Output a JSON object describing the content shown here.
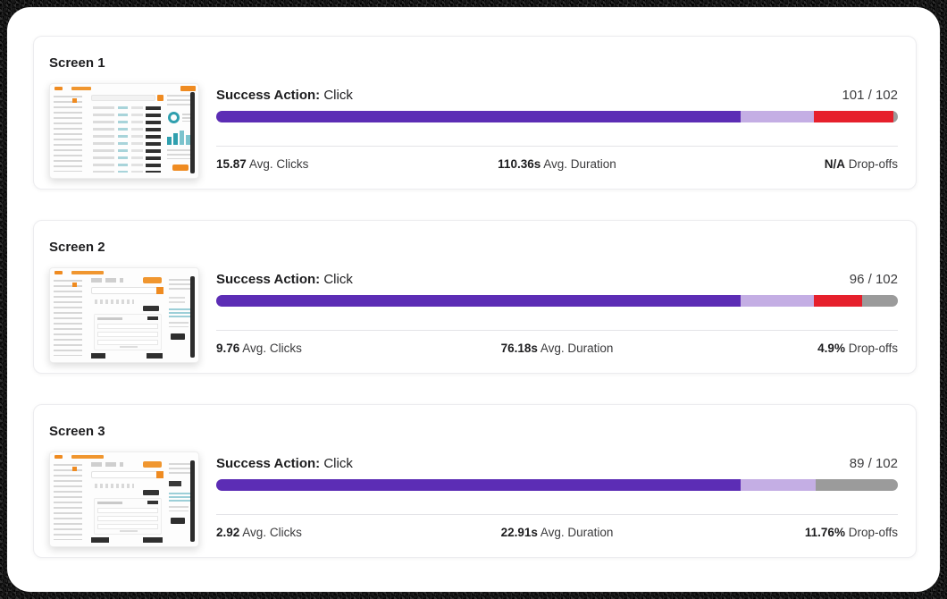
{
  "colors": {
    "purple": "#5C2DB5",
    "purple_light": "#C4AEE4",
    "red": "#E6202C",
    "gray": "#9B9B9B",
    "accent_orange": "#EF8B21",
    "teal": "#2F9FAE"
  },
  "cards": [
    {
      "title": "Screen 1",
      "success_action_label": "Success Action:",
      "success_action_value": "Click",
      "count": "101 / 102",
      "segments": [
        {
          "color": "purple",
          "pct": 76.9
        },
        {
          "color": "purple_light",
          "pct": 10.8
        },
        {
          "color": "red",
          "pct": 11.6
        },
        {
          "color": "gray",
          "pct": 0.7
        }
      ],
      "stats": [
        {
          "value": "15.87",
          "label": "Avg. Clicks"
        },
        {
          "value": "110.36s",
          "label": "Avg. Duration"
        },
        {
          "value": "N/A",
          "label": "Drop-offs"
        }
      ]
    },
    {
      "title": "Screen 2",
      "success_action_label": "Success Action:",
      "success_action_value": "Click",
      "count": "96 / 102",
      "segments": [
        {
          "color": "purple",
          "pct": 76.9
        },
        {
          "color": "purple_light",
          "pct": 10.8
        },
        {
          "color": "red",
          "pct": 7.1
        },
        {
          "color": "gray",
          "pct": 5.2
        }
      ],
      "stats": [
        {
          "value": "9.76",
          "label": "Avg. Clicks"
        },
        {
          "value": "76.18s",
          "label": "Avg. Duration"
        },
        {
          "value": "4.9%",
          "label": "Drop-offs"
        }
      ]
    },
    {
      "title": "Screen 3",
      "success_action_label": "Success Action:",
      "success_action_value": "Click",
      "count": "89 / 102",
      "segments": [
        {
          "color": "purple",
          "pct": 76.9
        },
        {
          "color": "purple_light",
          "pct": 11.1
        },
        {
          "color": "gray",
          "pct": 12.0
        }
      ],
      "stats": [
        {
          "value": "2.92",
          "label": "Avg. Clicks"
        },
        {
          "value": "22.91s",
          "label": "Avg. Duration"
        },
        {
          "value": "11.76%",
          "label": "Drop-offs"
        }
      ]
    }
  ]
}
